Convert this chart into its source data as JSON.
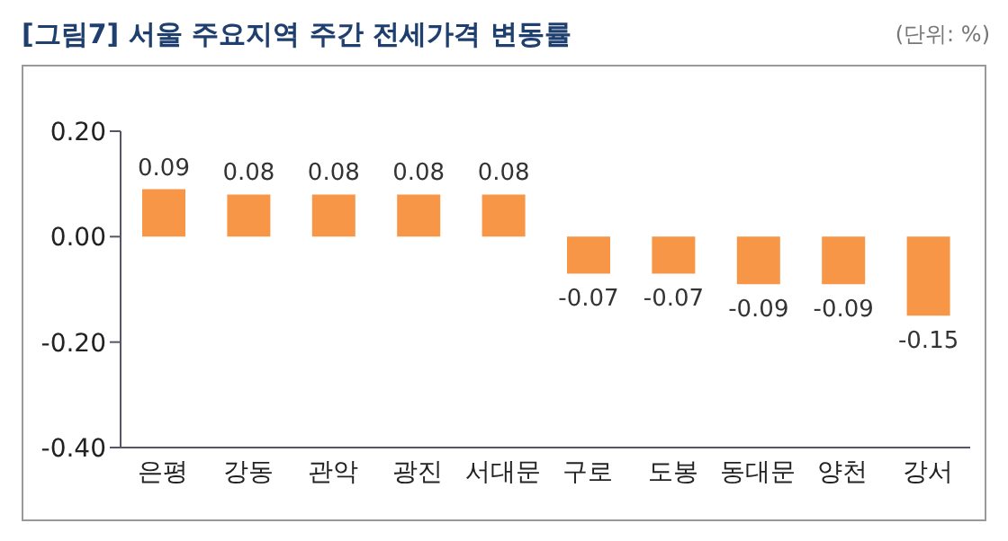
{
  "chart_data": {
    "type": "bar",
    "title": "[그림7] 서울 주요지역 주간 전세가격 변동률",
    "annotations": [
      "(단위: %)"
    ],
    "categories": [
      "은평",
      "강동",
      "관악",
      "광진",
      "서대문",
      "구로",
      "도봉",
      "동대문",
      "양천",
      "강서"
    ],
    "values": [
      0.09,
      0.08,
      0.08,
      0.08,
      0.08,
      -0.07,
      -0.07,
      -0.09,
      -0.09,
      -0.15
    ],
    "color": "#f79646",
    "ylim": [
      -0.4,
      0.2
    ],
    "yticks": [
      {
        "value": 0.2,
        "label": "0.20"
      },
      {
        "value": 0,
        "label": "0.00"
      },
      {
        "value": -0.2,
        "label": "-0.20"
      },
      {
        "value": -0.4,
        "label": "-0.40"
      }
    ],
    "grid": false,
    "data_labels": true,
    "legend": false
  }
}
